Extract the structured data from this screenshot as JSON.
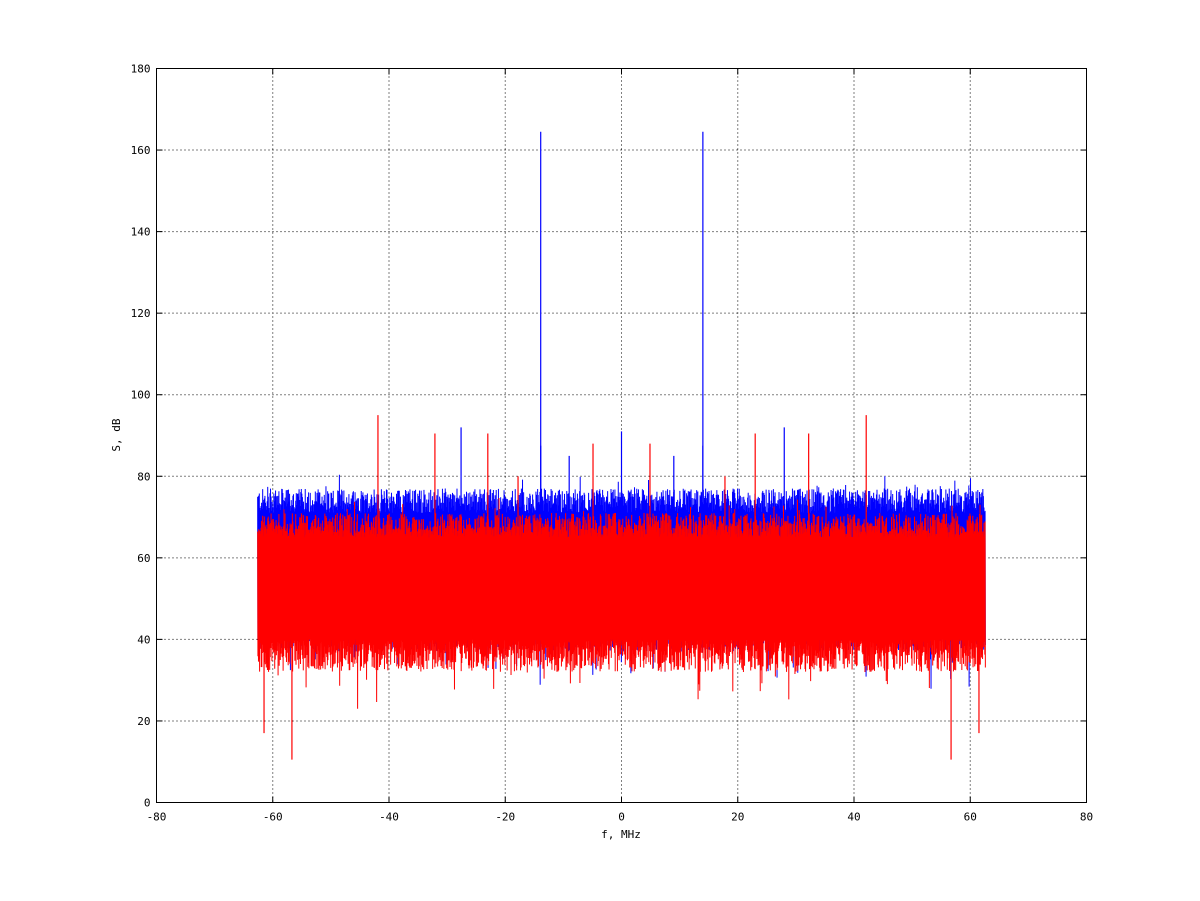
{
  "chart_data": {
    "type": "line",
    "title": "",
    "xlabel": "f, MHz",
    "ylabel": "S, dB",
    "xlim": [
      -80,
      80
    ],
    "ylim": [
      0,
      180
    ],
    "xticks": [
      -80,
      -60,
      -40,
      -20,
      0,
      20,
      40,
      60,
      80
    ],
    "yticks": [
      0,
      20,
      40,
      60,
      80,
      100,
      120,
      140,
      160,
      180
    ],
    "grid": true,
    "legend": "none",
    "series": [
      {
        "color": "#0000ff",
        "f_range": [
          -62.6,
          62.6
        ],
        "noise_floor_range": [
          40,
          77
        ],
        "peaks": [
          {
            "f": -13.9,
            "S": 164.5
          },
          {
            "f": 14.0,
            "S": 164.5
          },
          {
            "f": -27.6,
            "S": 92
          },
          {
            "f": 0.0,
            "S": 91
          },
          {
            "f": 28.0,
            "S": 92
          },
          {
            "f": -9.0,
            "S": 85
          },
          {
            "f": 9.0,
            "S": 85
          },
          {
            "f": -13.9,
            "S": 87.5
          },
          {
            "f": 14.0,
            "S": 87.5
          }
        ]
      },
      {
        "color": "#ff0000",
        "f_range": [
          -62.6,
          62.6
        ],
        "noise_floor_range": [
          35,
          71
        ],
        "peaks": [
          {
            "f": -41.9,
            "S": 95
          },
          {
            "f": 42.1,
            "S": 95
          },
          {
            "f": -32.1,
            "S": 90.5
          },
          {
            "f": 32.2,
            "S": 90.5
          },
          {
            "f": -23.0,
            "S": 90.5
          },
          {
            "f": 23.0,
            "S": 90.5
          },
          {
            "f": 4.9,
            "S": 88
          },
          {
            "f": -4.9,
            "S": 88
          },
          {
            "f": -17.8,
            "S": 80
          },
          {
            "f": 17.8,
            "S": 80
          }
        ],
        "dips": [
          {
            "f": -56.7,
            "S": 10.5
          },
          {
            "f": 56.7,
            "S": 10.5
          },
          {
            "f": -61.5,
            "S": 17
          },
          {
            "f": 61.5,
            "S": 17
          }
        ]
      }
    ]
  }
}
